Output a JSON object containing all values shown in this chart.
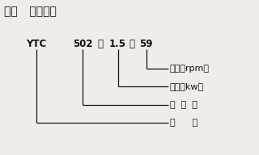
{
  "title": "三、   型号说明",
  "model_text": "YTC   502－1.5－59",
  "ytc_label": "YTC",
  "model_display": [
    "YTC",
    "502",
    "－",
    "1.5",
    "－",
    "59"
  ],
  "labels": [
    "转速（rpm）",
    "功率（kw）",
    "机  座  号",
    "型      号"
  ],
  "bg_color": "#f0ede8",
  "text_color": "#111111",
  "line_color": "#111111",
  "title_fontsize": 10,
  "model_fontsize": 8.5,
  "label_fontsize": 8,
  "lw": 0.9
}
